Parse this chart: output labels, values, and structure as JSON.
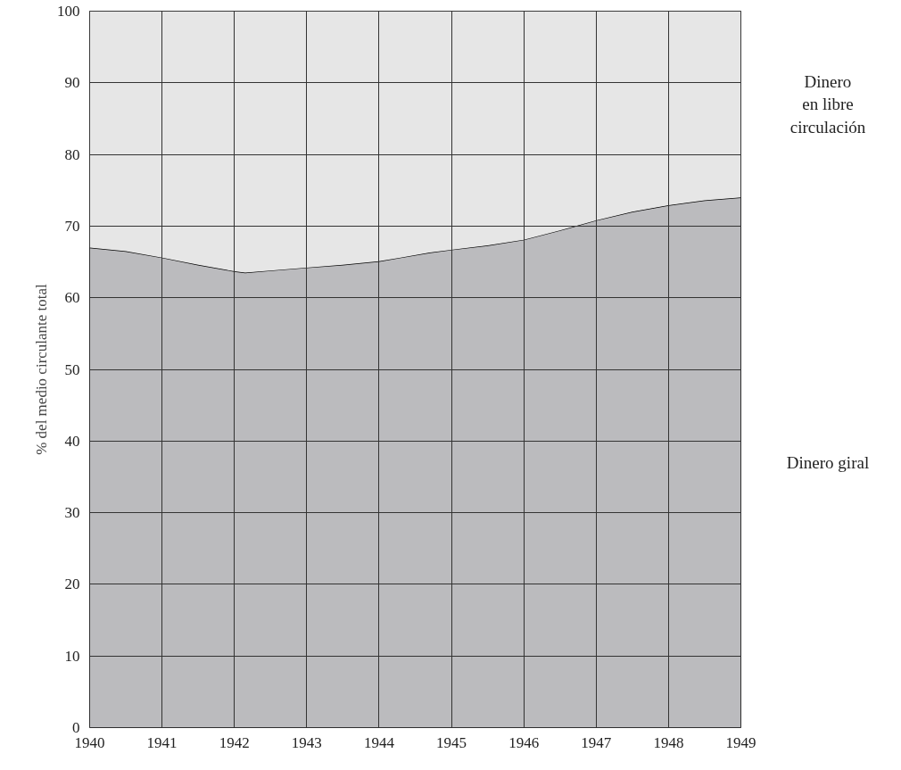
{
  "chart_data": {
    "type": "area",
    "stacked": true,
    "ylabel": "% del medio circulante total",
    "x": [
      1940,
      1940.5,
      1941,
      1941.5,
      1942,
      1942.15,
      1942.5,
      1943,
      1943.5,
      1944,
      1944.3,
      1944.7,
      1945,
      1945.5,
      1946,
      1946.5,
      1947,
      1947.5,
      1948,
      1948.5,
      1949
    ],
    "series": [
      {
        "name": "Dinero giral",
        "color": "#bbbbbe",
        "values": [
          67.0,
          66.5,
          65.6,
          64.6,
          63.7,
          63.5,
          63.8,
          64.2,
          64.6,
          65.1,
          65.6,
          66.3,
          66.7,
          67.3,
          68.1,
          69.4,
          70.8,
          72.0,
          72.9,
          73.6,
          74.0
        ]
      },
      {
        "name": "Dinero en libre circulación",
        "color": "#e6e6e6",
        "values": [
          33.0,
          33.5,
          34.4,
          35.4,
          36.3,
          36.5,
          36.2,
          35.8,
          35.4,
          34.9,
          34.4,
          33.7,
          33.3,
          32.7,
          31.9,
          30.6,
          29.2,
          28.0,
          27.1,
          26.4,
          26.0
        ]
      }
    ],
    "xlim": [
      1940,
      1949
    ],
    "xticks": [
      1940,
      1941,
      1942,
      1943,
      1944,
      1945,
      1946,
      1947,
      1948,
      1949
    ],
    "ylim": [
      0,
      100
    ],
    "yticks": [
      0,
      10,
      20,
      30,
      40,
      50,
      60,
      70,
      80,
      90,
      100
    ],
    "grid": true
  }
}
